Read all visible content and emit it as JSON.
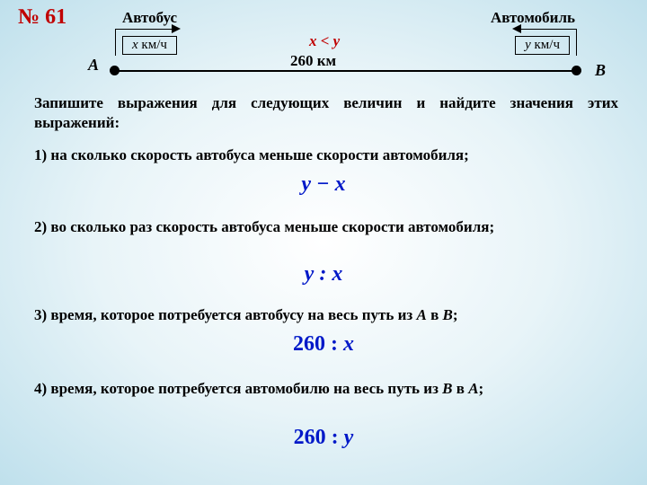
{
  "title": "№ 61",
  "diagram": {
    "bus_label": "Автобус",
    "car_label": "Автомобиль",
    "bus_speed_var": "x",
    "car_speed_var": "y",
    "speed_unit": " км/ч",
    "inequality": "x < y",
    "distance": "260 км",
    "pointA": "A",
    "pointB": "B"
  },
  "intro": "Запишите выражения для следующих величин и найдите значения этих выражений:",
  "q1": "1) на сколько скорость автобуса меньше скорости автомобиля;",
  "a1": "y − x",
  "q2": "2) во сколько раз скорость автобуса меньше скорости автомобиля;",
  "a2": "y : x",
  "q3_pre": "3) время, которое потребуется автобусу на весь путь из ",
  "q3_mid": " в ",
  "q3_post": ";",
  "a3_num": "260 : ",
  "a3_var": "x",
  "q4_pre": "4) время, которое потребуется автомобилю на весь путь из ",
  "q4_mid": " в ",
  "q4_post": ";",
  "a4_num": "260 : ",
  "a4_var": "y",
  "colors": {
    "title": "#c00000",
    "inequality": "#c00000",
    "answer": "#0018c8",
    "text": "#000000"
  }
}
